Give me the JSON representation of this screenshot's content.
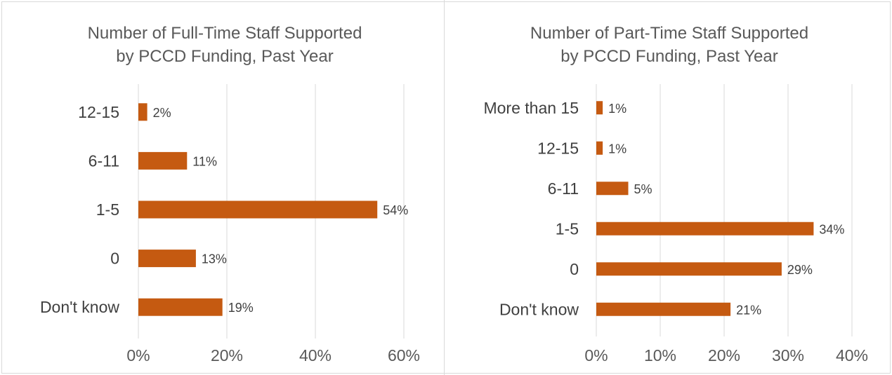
{
  "chart_data": [
    {
      "type": "bar",
      "orientation": "horizontal",
      "title": "Number of Full-Time Staff Supported by PCCD Funding, Past Year",
      "title_lines": [
        "Number of Full-Time Staff Supported",
        "by PCCD Funding, Past Year"
      ],
      "categories": [
        "12-15",
        "6-11",
        "1-5",
        "0",
        "Don't know"
      ],
      "values": [
        2,
        11,
        54,
        13,
        19
      ],
      "data_labels": [
        "2%",
        "11%",
        "54%",
        "13%",
        "19%"
      ],
      "xlim": [
        0,
        60
      ],
      "x_ticks": [
        0,
        20,
        40,
        60
      ],
      "x_tick_labels": [
        "0%",
        "20%",
        "40%",
        "60%"
      ],
      "grid": true,
      "xlabel": "",
      "ylabel": ""
    },
    {
      "type": "bar",
      "orientation": "horizontal",
      "title": "Number of Part-Time Staff Supported by PCCD Funding, Past Year",
      "title_lines": [
        "Number of Part-Time Staff Supported",
        "by PCCD Funding, Past Year"
      ],
      "categories": [
        "More than 15",
        "12-15",
        "6-11",
        "1-5",
        "0",
        "Don't know"
      ],
      "values": [
        1,
        1,
        5,
        34,
        29,
        21
      ],
      "data_labels": [
        "1%",
        "1%",
        "5%",
        "34%",
        "29%",
        "21%"
      ],
      "xlim": [
        0,
        40
      ],
      "x_ticks": [
        0,
        10,
        20,
        30,
        40
      ],
      "x_tick_labels": [
        "0%",
        "10%",
        "20%",
        "30%",
        "40%"
      ],
      "grid": true,
      "xlabel": "",
      "ylabel": ""
    }
  ],
  "colors": {
    "bar": "#c55a11",
    "gridline": "#d9d9d9",
    "text": "#404040"
  }
}
